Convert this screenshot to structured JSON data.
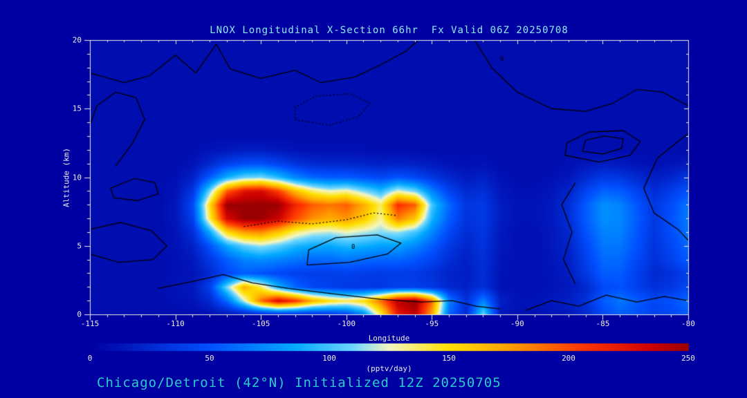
{
  "title": "LNOX Longitudinal X-Section 66hr  Fx Valid 06Z 20250708",
  "subtitle": "Chicago/Detroit (42°N) Initialized 12Z 20250705",
  "colors": {
    "background": "#0000A2",
    "title_text": "#8FE9F0",
    "subtitle_text": "#2CCBCB",
    "axis_text": "#EDEDED",
    "axis_line": "#EDEDED",
    "contour_line": "#000000"
  },
  "chart_data": {
    "type": "heatmap",
    "title": "LNOX Longitudinal X-Section 66hr  Fx Valid 06Z 20250708",
    "xlabel": "Longitude",
    "ylabel": "Altitude (km)",
    "units_label": "(pptv/day)",
    "xlim": [
      -115,
      -80
    ],
    "ylim": [
      0,
      20
    ],
    "x_ticks": [
      -115,
      -110,
      -105,
      -100,
      -95,
      -90,
      -85,
      -80
    ],
    "y_ticks": [
      0,
      5,
      10,
      15,
      20
    ],
    "colorbar_range": [
      0,
      250
    ],
    "colorbar_ticks": [
      0,
      50,
      100,
      150,
      200,
      250
    ],
    "lon_start": -115,
    "lon_step": 1,
    "alt_start": 0,
    "alt_step": 1,
    "colormap_stops": [
      [
        0,
        "#0000A0"
      ],
      [
        50,
        "#0050FF"
      ],
      [
        85,
        "#00A8FF"
      ],
      [
        110,
        "#6FD6FF"
      ],
      [
        125,
        "#F4F6C0"
      ],
      [
        150,
        "#FFE000"
      ],
      [
        175,
        "#FFA000"
      ],
      [
        205,
        "#FF3800"
      ],
      [
        235,
        "#CC0000"
      ],
      [
        250,
        "#990000"
      ]
    ],
    "values": [
      [
        8,
        8,
        8,
        8,
        8,
        8,
        8,
        10,
        12,
        15,
        20,
        25,
        25,
        25,
        30,
        40,
        70,
        140,
        220,
        240,
        170,
        60,
        25,
        110,
        15,
        10,
        10,
        12,
        15,
        25,
        45,
        55,
        50,
        40,
        45,
        55
      ],
      [
        8,
        8,
        8,
        8,
        8,
        10,
        12,
        25,
        60,
        120,
        190,
        230,
        210,
        170,
        150,
        140,
        150,
        190,
        240,
        250,
        190,
        70,
        30,
        70,
        20,
        12,
        12,
        15,
        20,
        30,
        55,
        65,
        55,
        45,
        50,
        60
      ],
      [
        8,
        8,
        8,
        8,
        8,
        12,
        15,
        40,
        110,
        170,
        140,
        90,
        60,
        45,
        40,
        35,
        35,
        35,
        40,
        40,
        35,
        25,
        20,
        30,
        12,
        10,
        10,
        12,
        15,
        25,
        45,
        50,
        40,
        30,
        35,
        45
      ],
      [
        8,
        8,
        8,
        8,
        8,
        10,
        12,
        25,
        45,
        55,
        50,
        45,
        40,
        38,
        38,
        40,
        38,
        36,
        38,
        36,
        30,
        22,
        18,
        28,
        12,
        10,
        10,
        12,
        18,
        35,
        55,
        55,
        40,
        25,
        30,
        40
      ],
      [
        8,
        8,
        8,
        8,
        8,
        10,
        15,
        35,
        55,
        70,
        75,
        70,
        65,
        60,
        60,
        65,
        60,
        58,
        58,
        52,
        42,
        28,
        20,
        30,
        14,
        10,
        10,
        14,
        20,
        40,
        60,
        60,
        45,
        30,
        40,
        55
      ],
      [
        8,
        8,
        8,
        8,
        8,
        12,
        20,
        50,
        85,
        105,
        115,
        105,
        92,
        85,
        85,
        92,
        88,
        82,
        82,
        72,
        55,
        35,
        24,
        32,
        15,
        10,
        10,
        15,
        22,
        45,
        65,
        65,
        50,
        32,
        45,
        60
      ],
      [
        8,
        8,
        8,
        8,
        8,
        12,
        28,
        85,
        150,
        175,
        180,
        160,
        135,
        122,
        118,
        125,
        118,
        112,
        115,
        100,
        72,
        45,
        28,
        34,
        16,
        10,
        10,
        15,
        25,
        50,
        70,
        70,
        52,
        34,
        48,
        65
      ],
      [
        8,
        8,
        8,
        8,
        8,
        14,
        40,
        140,
        230,
        250,
        250,
        235,
        200,
        180,
        170,
        178,
        160,
        130,
        185,
        160,
        90,
        55,
        32,
        36,
        18,
        12,
        12,
        16,
        28,
        55,
        75,
        72,
        55,
        35,
        50,
        68
      ],
      [
        8,
        8,
        8,
        8,
        8,
        14,
        45,
        150,
        250,
        250,
        250,
        250,
        215,
        195,
        188,
        195,
        170,
        138,
        210,
        195,
        100,
        60,
        34,
        36,
        18,
        12,
        12,
        16,
        28,
        55,
        75,
        70,
        52,
        34,
        48,
        65
      ],
      [
        8,
        8,
        8,
        8,
        8,
        12,
        35,
        110,
        195,
        225,
        230,
        205,
        165,
        138,
        125,
        130,
        112,
        95,
        125,
        110,
        70,
        42,
        26,
        30,
        15,
        10,
        10,
        14,
        22,
        42,
        58,
        55,
        42,
        28,
        38,
        52
      ],
      [
        8,
        8,
        8,
        8,
        8,
        10,
        20,
        55,
        90,
        108,
        112,
        95,
        72,
        60,
        55,
        56,
        50,
        45,
        52,
        45,
        34,
        24,
        16,
        20,
        12,
        8,
        8,
        10,
        14,
        26,
        36,
        34,
        26,
        18,
        24,
        34
      ],
      [
        8,
        8,
        8,
        8,
        8,
        8,
        12,
        25,
        40,
        48,
        50,
        42,
        32,
        26,
        24,
        24,
        22,
        20,
        22,
        20,
        16,
        12,
        10,
        12,
        8,
        8,
        8,
        8,
        10,
        14,
        18,
        16,
        12,
        10,
        12,
        16
      ],
      [
        8,
        8,
        8,
        8,
        8,
        8,
        8,
        12,
        15,
        18,
        18,
        15,
        12,
        10,
        10,
        10,
        10,
        8,
        8,
        8,
        8,
        8,
        8,
        8,
        8,
        8,
        8,
        8,
        8,
        8,
        8,
        8,
        8,
        8,
        8,
        8
      ],
      [
        8,
        8,
        8,
        8,
        8,
        8,
        8,
        8,
        8,
        8,
        8,
        8,
        8,
        8,
        8,
        8,
        8,
        8,
        8,
        8,
        8,
        8,
        8,
        8,
        8,
        8,
        8,
        8,
        8,
        8,
        8,
        8,
        8,
        8,
        8,
        8
      ],
      [
        8,
        8,
        8,
        8,
        8,
        8,
        8,
        8,
        8,
        8,
        8,
        8,
        8,
        8,
        8,
        8,
        8,
        8,
        8,
        8,
        8,
        8,
        8,
        8,
        8,
        8,
        8,
        8,
        8,
        8,
        8,
        8,
        8,
        8,
        8,
        8
      ],
      [
        8,
        8,
        8,
        8,
        8,
        8,
        8,
        8,
        8,
        8,
        8,
        8,
        8,
        8,
        8,
        8,
        8,
        8,
        8,
        8,
        8,
        8,
        8,
        8,
        8,
        8,
        8,
        8,
        8,
        8,
        8,
        8,
        8,
        8,
        8,
        8
      ],
      [
        8,
        8,
        8,
        8,
        8,
        8,
        8,
        8,
        8,
        8,
        8,
        8,
        8,
        8,
        8,
        8,
        8,
        8,
        8,
        8,
        8,
        8,
        8,
        8,
        8,
        8,
        8,
        8,
        8,
        8,
        8,
        8,
        8,
        8,
        8,
        8
      ],
      [
        8,
        8,
        8,
        8,
        8,
        8,
        8,
        8,
        8,
        8,
        8,
        8,
        8,
        8,
        8,
        8,
        8,
        8,
        8,
        8,
        8,
        8,
        8,
        8,
        8,
        8,
        8,
        8,
        8,
        8,
        8,
        8,
        8,
        8,
        8,
        8
      ],
      [
        8,
        8,
        8,
        8,
        8,
        8,
        8,
        8,
        8,
        8,
        8,
        8,
        8,
        8,
        8,
        8,
        8,
        8,
        8,
        8,
        8,
        8,
        8,
        8,
        8,
        8,
        8,
        8,
        8,
        8,
        8,
        8,
        8,
        8,
        8,
        8
      ],
      [
        8,
        8,
        8,
        8,
        8,
        8,
        8,
        8,
        8,
        8,
        8,
        8,
        8,
        8,
        8,
        8,
        8,
        8,
        8,
        8,
        8,
        8,
        8,
        8,
        8,
        8,
        8,
        8,
        8,
        8,
        8,
        8,
        8,
        8,
        8,
        8
      ],
      [
        8,
        8,
        8,
        8,
        8,
        8,
        8,
        8,
        8,
        8,
        8,
        8,
        8,
        8,
        8,
        8,
        8,
        8,
        8,
        8,
        8,
        8,
        8,
        8,
        8,
        8,
        8,
        8,
        8,
        8,
        8,
        8,
        8,
        8,
        8,
        8
      ]
    ],
    "contours": [
      {
        "style": "solid",
        "points": [
          [
            -113.5,
            10.8
          ],
          [
            -112.5,
            12.5
          ],
          [
            -111.8,
            14.2
          ],
          [
            -112.3,
            15.8
          ],
          [
            -113.5,
            16.2
          ],
          [
            -114.6,
            15.2
          ],
          [
            -115,
            13.8
          ]
        ]
      },
      {
        "style": "solid",
        "points": [
          [
            -115,
            17.6
          ],
          [
            -113,
            16.9
          ],
          [
            -111.5,
            17.4
          ],
          [
            -110,
            18.9
          ],
          [
            -108.8,
            17.6
          ],
          [
            -107.6,
            19.7
          ],
          [
            -106.8,
            17.9
          ],
          [
            -105,
            17.2
          ],
          [
            -103,
            17.8
          ],
          [
            -101.5,
            16.9
          ],
          [
            -99.5,
            17.3
          ],
          [
            -98,
            18.2
          ],
          [
            -96.5,
            19.2
          ],
          [
            -95.8,
            20
          ]
        ]
      },
      {
        "style": "dotted",
        "points": [
          [
            -103,
            14.2
          ],
          [
            -101,
            13.8
          ],
          [
            -99.3,
            14.4
          ],
          [
            -98.6,
            15.4
          ],
          [
            -99.8,
            16.1
          ],
          [
            -101.8,
            15.9
          ],
          [
            -103,
            15.1
          ],
          [
            -103,
            14.2
          ]
        ]
      },
      {
        "style": "solid",
        "points": [
          [
            -87.2,
            11.6
          ],
          [
            -85.2,
            11.1
          ],
          [
            -83.4,
            11.6
          ],
          [
            -82.8,
            12.6
          ],
          [
            -83.8,
            13.4
          ],
          [
            -85.8,
            13.3
          ],
          [
            -87.1,
            12.5
          ],
          [
            -87.2,
            11.6
          ]
        ]
      },
      {
        "style": "solid",
        "points": [
          [
            -86.2,
            11.9
          ],
          [
            -85,
            11.7
          ],
          [
            -83.9,
            12.1
          ],
          [
            -83.8,
            12.8
          ],
          [
            -84.9,
            13.0
          ],
          [
            -86,
            12.7
          ],
          [
            -86.2,
            11.9
          ]
        ]
      },
      {
        "style": "solid",
        "points": [
          [
            -92.5,
            20
          ],
          [
            -91.5,
            18
          ],
          [
            -90,
            16.2
          ],
          [
            -88,
            15
          ],
          [
            -86,
            14.8
          ],
          [
            -84.4,
            15.4
          ],
          [
            -83,
            16.4
          ],
          [
            -81.5,
            16.2
          ],
          [
            -80,
            15.2
          ]
        ]
      },
      {
        "style": "solid",
        "points": [
          [
            -80,
            13.2
          ],
          [
            -81.8,
            11.4
          ],
          [
            -82.6,
            9.2
          ],
          [
            -82,
            7.4
          ],
          [
            -80.6,
            6.2
          ],
          [
            -80,
            5.4
          ]
        ]
      },
      {
        "style": "solid",
        "points": [
          [
            -115,
            6.2
          ],
          [
            -113.2,
            6.7
          ],
          [
            -111.4,
            6.1
          ],
          [
            -110.5,
            5
          ],
          [
            -111.3,
            4
          ],
          [
            -113.3,
            3.8
          ],
          [
            -115,
            4.4
          ]
        ]
      },
      {
        "style": "solid",
        "points": [
          [
            -113.8,
            9.2
          ],
          [
            -112.4,
            9.9
          ],
          [
            -111.2,
            9.6
          ],
          [
            -111,
            8.8
          ],
          [
            -112.2,
            8.3
          ],
          [
            -113.6,
            8.5
          ],
          [
            -113.8,
            9.2
          ]
        ]
      },
      {
        "style": "solid",
        "points": [
          [
            -102.3,
            3.6
          ],
          [
            -99.8,
            3.8
          ],
          [
            -97.6,
            4.4
          ],
          [
            -96.8,
            5.2
          ],
          [
            -98.2,
            5.8
          ],
          [
            -100.6,
            5.6
          ],
          [
            -102.2,
            4.7
          ],
          [
            -102.3,
            3.6
          ]
        ]
      },
      {
        "style": "solid",
        "points": [
          [
            -111,
            1.9
          ],
          [
            -109,
            2.4
          ],
          [
            -107.2,
            2.9
          ],
          [
            -105.5,
            2.3
          ],
          [
            -103.4,
            1.9
          ],
          [
            -100.8,
            1.5
          ],
          [
            -98,
            1.1
          ],
          [
            -95.6,
            0.9
          ],
          [
            -93.8,
            1.0
          ],
          [
            -92.4,
            0.6
          ],
          [
            -91,
            0.4
          ]
        ]
      },
      {
        "style": "solid",
        "points": [
          [
            -89.5,
            0.3
          ],
          [
            -88,
            1.0
          ],
          [
            -86.4,
            0.6
          ],
          [
            -84.8,
            1.4
          ],
          [
            -83,
            0.9
          ],
          [
            -81.4,
            1.3
          ],
          [
            -80,
            1.0
          ]
        ]
      },
      {
        "style": "solid",
        "points": [
          [
            -86.6,
            2.2
          ],
          [
            -87.3,
            4.0
          ],
          [
            -86.8,
            6.0
          ],
          [
            -87.4,
            8.0
          ],
          [
            -86.6,
            9.6
          ]
        ]
      },
      {
        "style": "dotted",
        "points": [
          [
            -106,
            6.4
          ],
          [
            -104,
            6.8
          ],
          [
            -102,
            6.6
          ],
          [
            -100,
            6.9
          ],
          [
            -98.4,
            7.4
          ],
          [
            -97,
            7.2
          ]
        ]
      }
    ],
    "contour_labels": [
      {
        "text": "0",
        "lon": -99.6,
        "alt": 4.9
      },
      {
        "text": "0",
        "lon": -90.9,
        "alt": 18.6
      }
    ]
  }
}
